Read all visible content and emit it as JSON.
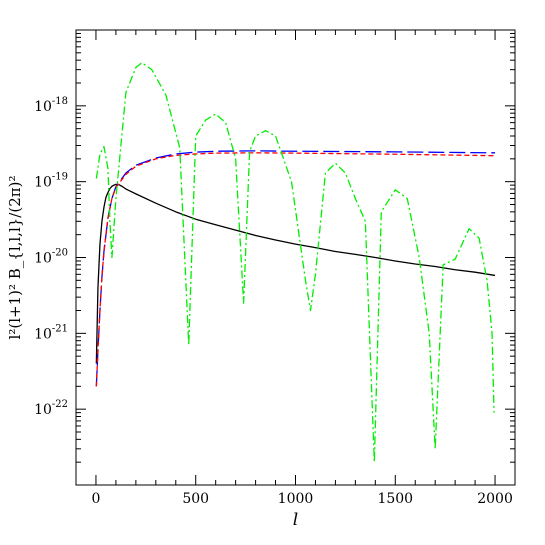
{
  "chart_data": {
    "type": "line",
    "title": "",
    "xlabel": "l",
    "ylabel": "l²(l+1)² B_{l,l,l}/(2π)²",
    "x_ticks": [
      0,
      500,
      1000,
      1500,
      2000
    ],
    "x_tick_labels": [
      "0",
      "500",
      "1000",
      "1500",
      "2000"
    ],
    "xlim": [
      -100,
      2100
    ],
    "y_scale": "log",
    "y_tick_exponents": [
      -22,
      -21,
      -20,
      -19,
      -18
    ],
    "ylim": [
      1e-23,
      1e-17
    ],
    "grid": false,
    "legend": "none",
    "series": [
      {
        "id": "solid-black",
        "style": "solid",
        "color": "#000000",
        "x": [
          2,
          10,
          20,
          30,
          40,
          50,
          60,
          70,
          80,
          90,
          100,
          110,
          120,
          130,
          150,
          200,
          300,
          400,
          500,
          600,
          700,
          800,
          900,
          1000,
          1100,
          1200,
          1300,
          1400,
          1500,
          1600,
          1700,
          1800,
          1900,
          2000
        ],
        "y": [
          4e-22,
          4e-21,
          1.5e-20,
          3e-20,
          4.6e-20,
          6.2e-20,
          7.2e-20,
          8.1e-20,
          8.7e-20,
          9e-20,
          9.2e-20,
          9.2e-20,
          9e-20,
          8.7e-20,
          8e-20,
          6.9e-20,
          5.2e-20,
          4e-20,
          3.2e-20,
          2.7e-20,
          2.3e-20,
          1.95e-20,
          1.7e-20,
          1.5e-20,
          1.35e-20,
          1.2e-20,
          1.1e-20,
          1e-20,
          9e-21,
          8.2e-21,
          7.6e-21,
          6.9e-21,
          6.4e-21,
          5.8e-21
        ]
      },
      {
        "id": "long-dash-blue",
        "style": "long-dash",
        "color": "#0000ff",
        "x": [
          2,
          10,
          20,
          30,
          40,
          60,
          80,
          100,
          150,
          200,
          300,
          400,
          500,
          600,
          800,
          1000,
          1500,
          2000
        ],
        "y": [
          2e-22,
          6e-22,
          2e-21,
          5.5e-21,
          1.2e-20,
          3.3e-20,
          6e-20,
          8.6e-20,
          1.3e-19,
          1.65e-19,
          2.05e-19,
          2.32e-19,
          2.45e-19,
          2.52e-19,
          2.55e-19,
          2.52e-19,
          2.47e-19,
          2.4e-19
        ]
      },
      {
        "id": "short-dash-red",
        "style": "short-dash",
        "color": "#ff0000",
        "x": [
          2,
          10,
          20,
          30,
          40,
          60,
          80,
          100,
          150,
          200,
          300,
          400,
          500,
          600,
          800,
          1000,
          1500,
          2000
        ],
        "y": [
          2e-22,
          6e-22,
          2e-21,
          5.5e-21,
          1.2e-20,
          3.3e-20,
          6e-20,
          8.4e-20,
          1.25e-19,
          1.6e-19,
          2e-19,
          2.22e-19,
          2.32e-19,
          2.38e-19,
          2.4e-19,
          2.38e-19,
          2.3e-19,
          2.2e-19
        ]
      },
      {
        "id": "dash-dot-green",
        "style": "dash-dot",
        "color": "#00ee00",
        "x": [
          2,
          20,
          40,
          60,
          70,
          80,
          100,
          150,
          200,
          230,
          280,
          350,
          420,
          465,
          500,
          550,
          600,
          650,
          700,
          740,
          770,
          800,
          850,
          900,
          980,
          1050,
          1075,
          1100,
          1150,
          1200,
          1250,
          1300,
          1350,
          1395,
          1430,
          1500,
          1560,
          1620,
          1670,
          1700,
          1740,
          1800,
          1870,
          1920,
          1960,
          1985,
          1995
        ],
        "y": [
          1.1e-19,
          2.3e-19,
          2.9e-19,
          1.5e-19,
          3e-20,
          1e-20,
          6e-20,
          1.5e-18,
          3.2e-18,
          3.7e-18,
          3e-18,
          1.4e-18,
          2.8e-19,
          7e-22,
          4e-19,
          6.5e-19,
          7.8e-19,
          6e-19,
          2e-19,
          2.5e-21,
          2.5e-19,
          4e-19,
          4.7e-19,
          4e-19,
          1e-19,
          5e-21,
          2e-21,
          6e-21,
          1.3e-19,
          1.75e-19,
          1.3e-19,
          6e-20,
          3e-20,
          2e-23,
          4e-20,
          7.8e-20,
          6e-20,
          1e-20,
          1e-21,
          3e-23,
          8e-21,
          9.5e-21,
          2.4e-20,
          1.8e-20,
          5e-21,
          1e-21,
          9e-23
        ]
      }
    ]
  }
}
